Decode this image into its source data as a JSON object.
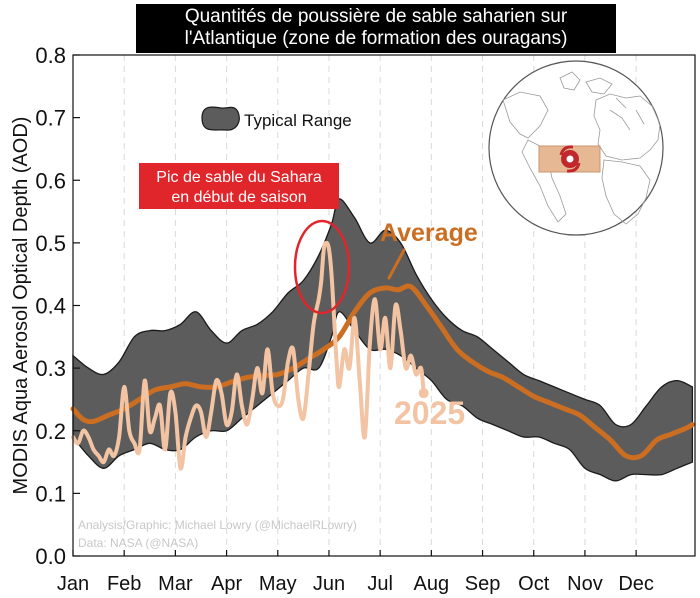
{
  "chart_data": {
    "type": "line",
    "title_lines": [
      "Quantités de poussière de sable saharien sur",
      "l'Atlantique (zone de formation des ouragans)"
    ],
    "ylabel": "MODIS Aqua Aerosol Optical Depth (AOD)",
    "ylim": [
      0.0,
      0.8
    ],
    "y_ticks": [
      "0.0",
      "0.1",
      "0.2",
      "0.3",
      "0.4",
      "0.5",
      "0.6",
      "0.7",
      "0.8"
    ],
    "x_ticks": [
      "Jan",
      "Feb",
      "Mar",
      "Apr",
      "May",
      "Jun",
      "Jul",
      "Aug",
      "Sep",
      "Oct",
      "Nov",
      "Dec"
    ],
    "x_unit": "month (1 = Jan 1)",
    "legend": {
      "label": "Typical Range",
      "placement": "upper-left"
    },
    "typical_range": {
      "x": [
        1.0,
        1.3,
        1.6,
        1.9,
        2.2,
        2.5,
        2.8,
        3.1,
        3.4,
        3.7,
        4.0,
        4.3,
        4.6,
        4.9,
        5.2,
        5.5,
        5.8,
        6.05,
        6.2,
        6.5,
        6.8,
        7.1,
        7.4,
        7.7,
        8.0,
        8.3,
        8.6,
        8.9,
        9.2,
        9.5,
        9.8,
        10.1,
        10.4,
        10.7,
        11.0,
        11.3,
        11.6,
        11.9,
        12.2,
        12.5,
        12.8,
        13.1
      ],
      "upper": [
        0.32,
        0.3,
        0.29,
        0.31,
        0.35,
        0.36,
        0.36,
        0.37,
        0.39,
        0.36,
        0.34,
        0.36,
        0.37,
        0.39,
        0.42,
        0.44,
        0.48,
        0.53,
        0.57,
        0.54,
        0.5,
        0.52,
        0.5,
        0.45,
        0.41,
        0.38,
        0.36,
        0.35,
        0.33,
        0.31,
        0.29,
        0.28,
        0.27,
        0.26,
        0.25,
        0.24,
        0.21,
        0.21,
        0.24,
        0.27,
        0.28,
        0.27
      ],
      "lower": [
        0.19,
        0.16,
        0.14,
        0.16,
        0.17,
        0.18,
        0.17,
        0.17,
        0.19,
        0.2,
        0.2,
        0.22,
        0.24,
        0.26,
        0.28,
        0.3,
        0.3,
        0.35,
        0.39,
        0.36,
        0.33,
        0.33,
        0.32,
        0.3,
        0.28,
        0.25,
        0.24,
        0.22,
        0.21,
        0.2,
        0.19,
        0.19,
        0.18,
        0.17,
        0.14,
        0.13,
        0.12,
        0.13,
        0.13,
        0.13,
        0.14,
        0.15
      ]
    },
    "series": [
      {
        "name": "Average",
        "color": "#cc6e22",
        "x": [
          1.0,
          1.2,
          1.4,
          1.7,
          2.0,
          2.3,
          2.6,
          2.9,
          3.2,
          3.5,
          3.8,
          4.1,
          4.4,
          4.7,
          5.0,
          5.3,
          5.6,
          5.9,
          6.2,
          6.5,
          6.8,
          7.1,
          7.35,
          7.6,
          7.9,
          8.2,
          8.5,
          8.8,
          9.1,
          9.4,
          9.7,
          10.0,
          10.3,
          10.6,
          10.9,
          11.2,
          11.5,
          11.8,
          12.1,
          12.4,
          12.7,
          13.0,
          13.1
        ],
        "y": [
          0.235,
          0.218,
          0.215,
          0.225,
          0.235,
          0.25,
          0.265,
          0.27,
          0.275,
          0.27,
          0.27,
          0.278,
          0.285,
          0.288,
          0.29,
          0.3,
          0.315,
          0.33,
          0.35,
          0.39,
          0.42,
          0.428,
          0.425,
          0.43,
          0.4,
          0.365,
          0.33,
          0.31,
          0.295,
          0.285,
          0.27,
          0.255,
          0.245,
          0.235,
          0.225,
          0.205,
          0.185,
          0.16,
          0.16,
          0.185,
          0.195,
          0.205,
          0.21
        ]
      },
      {
        "name": "2025",
        "color": "#f2c4a3",
        "x": [
          1.0,
          1.1,
          1.2,
          1.3,
          1.4,
          1.5,
          1.6,
          1.7,
          1.8,
          1.9,
          2.0,
          2.1,
          2.2,
          2.3,
          2.4,
          2.5,
          2.6,
          2.7,
          2.8,
          2.9,
          3.0,
          3.1,
          3.2,
          3.3,
          3.4,
          3.5,
          3.6,
          3.7,
          3.8,
          3.9,
          4.0,
          4.1,
          4.2,
          4.3,
          4.4,
          4.5,
          4.6,
          4.7,
          4.8,
          4.9,
          5.0,
          5.1,
          5.2,
          5.3,
          5.4,
          5.5,
          5.6,
          5.7,
          5.8,
          5.85,
          5.9,
          5.95,
          6.0,
          6.05,
          6.1,
          6.15,
          6.2,
          6.3,
          6.4,
          6.5,
          6.6,
          6.7,
          6.8,
          6.9,
          7.0,
          7.1,
          7.2,
          7.3,
          7.4,
          7.5,
          7.6,
          7.7,
          7.8,
          7.85
        ],
        "y": [
          0.19,
          0.18,
          0.2,
          0.19,
          0.17,
          0.16,
          0.15,
          0.17,
          0.16,
          0.19,
          0.27,
          0.2,
          0.18,
          0.17,
          0.28,
          0.2,
          0.22,
          0.24,
          0.17,
          0.26,
          0.23,
          0.14,
          0.19,
          0.22,
          0.24,
          0.23,
          0.19,
          0.23,
          0.28,
          0.26,
          0.21,
          0.23,
          0.29,
          0.24,
          0.21,
          0.25,
          0.3,
          0.26,
          0.33,
          0.26,
          0.24,
          0.25,
          0.31,
          0.33,
          0.25,
          0.22,
          0.29,
          0.37,
          0.41,
          0.44,
          0.49,
          0.5,
          0.49,
          0.45,
          0.38,
          0.31,
          0.27,
          0.33,
          0.3,
          0.38,
          0.28,
          0.19,
          0.34,
          0.41,
          0.33,
          0.38,
          0.3,
          0.4,
          0.36,
          0.3,
          0.32,
          0.29,
          0.3,
          0.26
        ]
      }
    ],
    "annotations": {
      "average_label": "Average",
      "year_label": "2025",
      "callout": [
        "Pic de sable du Sahara",
        "en début de saison"
      ],
      "credits": [
        "Analysis/Graphic: Michael Lowry (@MichaelRLowry)",
        "Data: NASA (@NASA)"
      ]
    },
    "colors": {
      "band": "#5c5c5c",
      "average": "#cc6e22",
      "year_2025": "#f2c4a3",
      "callout_bg": "#e0262b",
      "peak_circle": "#e0262b",
      "title_bg": "#000000"
    },
    "grid": {
      "vertical_dashed": true,
      "horizontal": false
    }
  }
}
